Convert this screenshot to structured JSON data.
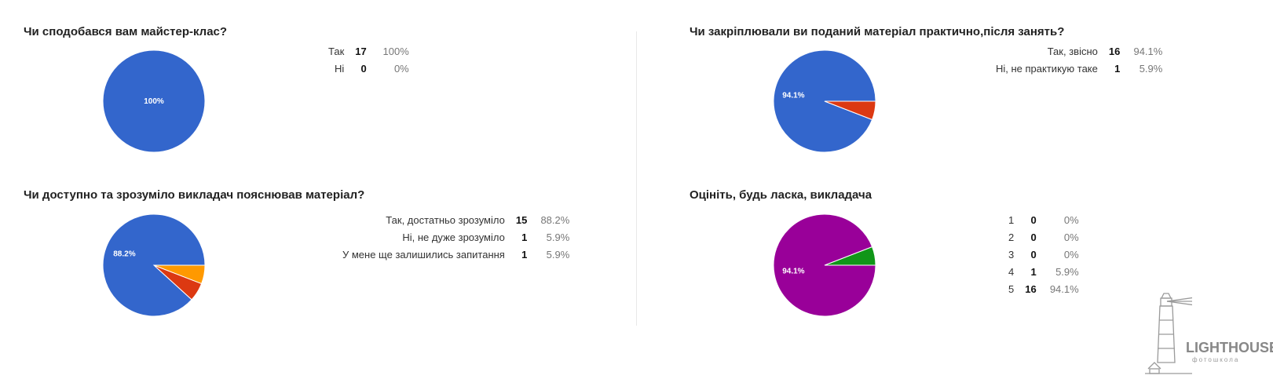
{
  "chart_data": [
    {
      "type": "pie",
      "title": "Чи сподобався вам майстер-клас?",
      "categories": [
        "Так",
        "Ні"
      ],
      "values": [
        17,
        0
      ],
      "percent_labels": [
        "100%",
        "0%"
      ],
      "slice_label": "100%",
      "colors": [
        "#3366cc",
        "#dc3912"
      ]
    },
    {
      "type": "pie",
      "title": "Чи закріплювали ви поданий матеріал практично,після занять?",
      "categories": [
        "Так, звісно",
        "Ні, не практикую таке"
      ],
      "values": [
        16,
        1
      ],
      "percent_labels": [
        "94.1%",
        "5.9%"
      ],
      "slice_label": "94.1%",
      "colors": [
        "#3366cc",
        "#dc3912"
      ]
    },
    {
      "type": "pie",
      "title": "Чи доступно та зрозуміло викладач пояснював матеріал?",
      "categories": [
        "Так, достатньо зрозуміло",
        "Ні, не дуже зрозуміло",
        "У мене ще залишились запитання"
      ],
      "values": [
        15,
        1,
        1
      ],
      "percent_labels": [
        "88.2%",
        "5.9%",
        "5.9%"
      ],
      "slice_label": "88.2%",
      "colors": [
        "#3366cc",
        "#dc3912",
        "#ff9900"
      ]
    },
    {
      "type": "pie",
      "title": "Оцініть, будь ласка, викладача",
      "categories": [
        "1",
        "2",
        "3",
        "4",
        "5"
      ],
      "values": [
        0,
        0,
        0,
        1,
        16
      ],
      "percent_labels": [
        "0%",
        "0%",
        "0%",
        "5.9%",
        "94.1%"
      ],
      "slice_label": "94.1%",
      "colors": [
        "#3366cc",
        "#dc3912",
        "#ff9900",
        "#109618",
        "#990099"
      ]
    }
  ],
  "watermark": {
    "brand": "LIGHTHOUSE",
    "subtitle": "фотошкола",
    "icon": "lighthouse-icon"
  }
}
